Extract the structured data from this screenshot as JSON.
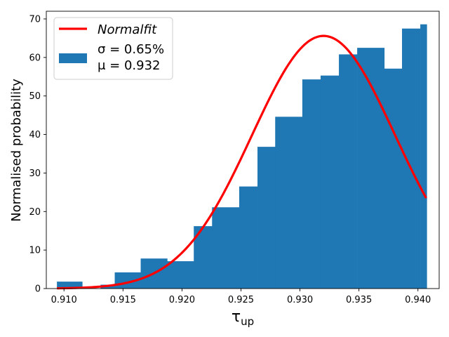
{
  "chart_data": {
    "type": "bar",
    "ylabel": "Normalised probability",
    "xlabel_main": "τ",
    "xlabel_sub": "up",
    "xlim": [
      0.9085,
      0.9418
    ],
    "ylim": [
      0,
      72
    ],
    "xticks": [
      0.91,
      0.915,
      0.92,
      0.925,
      0.93,
      0.935,
      0.94
    ],
    "xtick_labels": [
      "0.910",
      "0.915",
      "0.920",
      "0.925",
      "0.930",
      "0.935",
      "0.940"
    ],
    "yticks": [
      0,
      10,
      20,
      30,
      40,
      50,
      60,
      70
    ],
    "ytick_labels": [
      "0",
      "10",
      "20",
      "30",
      "40",
      "50",
      "60",
      "70"
    ],
    "histogram": {
      "edges": [
        0.9094,
        0.91155,
        0.9131,
        0.9143,
        0.9165,
        0.91875,
        0.921,
        0.92255,
        0.92485,
        0.9264,
        0.9279,
        0.9302,
        0.93175,
        0.9333,
        0.93485,
        0.93715,
        0.93865,
        0.9402,
        0.94075
      ],
      "values": [
        1.8,
        0,
        1,
        4.2,
        7.8,
        7.1,
        16.2,
        21.1,
        26.5,
        36.8,
        44.6,
        54.3,
        55.3,
        60.8,
        62.5,
        57.1,
        67.5,
        68.6
      ],
      "color": "#1f77b4"
    },
    "fit": {
      "mu": 0.932,
      "sigma": 0.00607,
      "peak": 65.6,
      "x_range": [
        0.9094,
        0.9407
      ],
      "color": "#ff0000"
    },
    "legend": {
      "fit_label": "Normalfit",
      "sigma_label": "σ = 0.65%",
      "mu_label": "μ = 0.932",
      "placement": "top-left"
    }
  }
}
